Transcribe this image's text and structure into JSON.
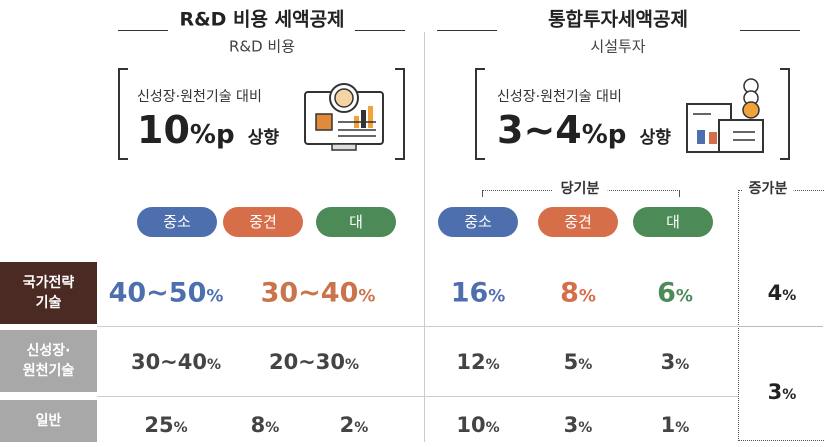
{
  "sections": [
    {
      "title": "R&D 비용 세액공제",
      "subtitle": "R&D 비용",
      "box_caption": "신성장·원천기술 대비",
      "box_number": "10",
      "box_unit": "%p",
      "box_suffix": "상향",
      "columns": [
        "중소",
        "중견",
        "대"
      ]
    },
    {
      "title": "통합투자세액공제",
      "subtitle": "시설투자",
      "box_caption": "신성장·원천기술 대비",
      "box_number": "3~4",
      "box_unit": "%p",
      "box_suffix": "상향",
      "current_label": "당기분",
      "increment_label": "증가분",
      "columns": [
        "중소",
        "중견",
        "대"
      ]
    }
  ],
  "rows": [
    {
      "label": [
        "국가전략",
        "기술"
      ],
      "rd": [
        {
          "v": "40~50",
          "u": "%"
        },
        {
          "v": "30~40",
          "u": "%"
        }
      ],
      "invest": [
        {
          "v": "16",
          "u": "%"
        },
        {
          "v": "8",
          "u": "%"
        },
        {
          "v": "6",
          "u": "%"
        }
      ],
      "increment": {
        "v": "4",
        "u": "%"
      }
    },
    {
      "label": [
        "신성장·",
        "원천기술"
      ],
      "rd": [
        {
          "v": "30~40",
          "u": "%"
        },
        {
          "v": "20~30",
          "u": "%"
        }
      ],
      "invest": [
        {
          "v": "12",
          "u": "%"
        },
        {
          "v": "5",
          "u": "%"
        },
        {
          "v": "3",
          "u": "%"
        }
      ],
      "increment": {
        "v": "3",
        "u": "%"
      }
    },
    {
      "label": [
        "일반"
      ],
      "rd": [
        {
          "v": "25",
          "u": "%"
        },
        {
          "v": "8",
          "u": "%"
        },
        {
          "v": "2",
          "u": "%"
        }
      ],
      "invest": [
        {
          "v": "10",
          "u": "%"
        },
        {
          "v": "3",
          "u": "%"
        },
        {
          "v": "1",
          "u": "%"
        }
      ]
    }
  ]
}
